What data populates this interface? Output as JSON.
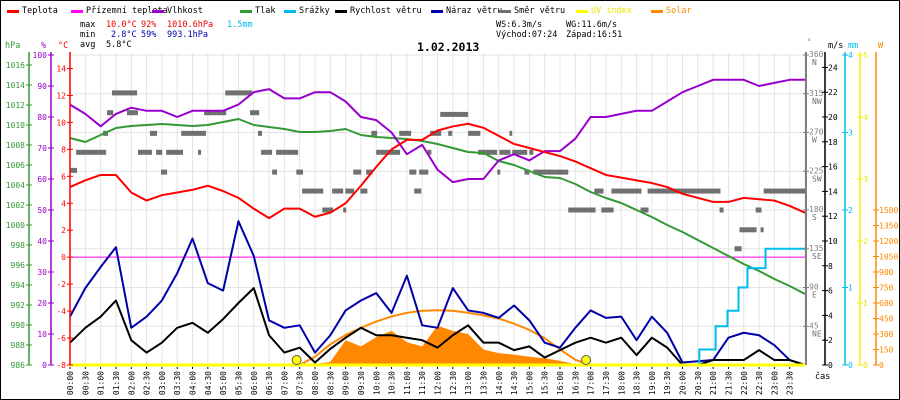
{
  "legend": [
    {
      "label": "Teplota",
      "color": "#ff0000",
      "text_color": "#000000"
    },
    {
      "label": "Přízemní teplota",
      "color": "#ff00ff",
      "text_color": "#000000"
    },
    {
      "label": "Vlhkost",
      "color": "#9900cc",
      "text_color": "#000000"
    },
    {
      "label": "Tlak",
      "color": "#339933",
      "text_color": "#000000"
    },
    {
      "label": "Srážky",
      "color": "#00bbee",
      "text_color": "#000000"
    },
    {
      "label": "Rychlost větru",
      "color": "#000000",
      "text_color": "#000000"
    },
    {
      "label": "Náraz větru",
      "color": "#0000aa",
      "text_color": "#000000"
    },
    {
      "label": "Směr větru",
      "color": "#707070",
      "text_color": "#000000"
    },
    {
      "label": "UV index",
      "color": "#ffff00",
      "text_color": "#e6e600"
    },
    {
      "label": "Solar",
      "color": "#ff8800",
      "text_color": "#ff8800"
    }
  ],
  "stats": {
    "max": {
      "label": "max",
      "temperature": "10.0°C",
      "humidity": "92%",
      "pressure": "1010.6hPa",
      "precipitation": "1.5mm"
    },
    "min": {
      "label": "min",
      "temperature": "2.8°C",
      "humidity": "59%",
      "pressure": "993.1hPa"
    },
    "avg": {
      "label": "avg",
      "temperature": "5.8°C"
    }
  },
  "wind_sun": {
    "wind_speed": "WS:6.3m/s",
    "wind_gust": "WG:11.6m/s",
    "sunrise": "Východ:07:24",
    "sunset": "Západ:16:51"
  },
  "chart_data": {
    "type": "line",
    "title": "1.02.2013",
    "xlabel": "čas",
    "x_range_hours": [
      0,
      24
    ],
    "x_tick_labels": [
      "00:00",
      "00:30",
      "01:00",
      "01:30",
      "02:00",
      "02:30",
      "03:00",
      "03:30",
      "04:00",
      "04:30",
      "05:00",
      "05:30",
      "06:00",
      "06:30",
      "07:00",
      "07:30",
      "08:00",
      "08:30",
      "09:00",
      "09:30",
      "10:00",
      "10:30",
      "11:00",
      "11:30",
      "12:00",
      "12:30",
      "13:00",
      "13:30",
      "14:00",
      "14:30",
      "15:00",
      "15:30",
      "16:00",
      "16:30",
      "17:00",
      "17:30",
      "18:00",
      "18:30",
      "19:00",
      "19:30",
      "20:00",
      "20:30",
      "21:00",
      "21:30",
      "22:00",
      "22:30",
      "23:00",
      "23:30"
    ],
    "grid": true,
    "legend_position": "top",
    "axes": {
      "pressure": {
        "unit": "hPa",
        "side": "left",
        "color": "#339933",
        "range": [
          986,
          1017
        ],
        "ticks": [
          986,
          988,
          990,
          992,
          994,
          996,
          998,
          1000,
          1002,
          1004,
          1006,
          1008,
          1010,
          1012,
          1014,
          1016
        ],
        "tick_labels": [
          "986",
          "988",
          "990",
          "992",
          "994",
          "996",
          "998",
          "1000",
          "1002",
          "1004",
          "1006",
          "1008",
          "1010",
          "1012",
          "1014",
          "1016"
        ]
      },
      "humidity": {
        "unit": "%",
        "side": "left",
        "color": "#9900cc",
        "range": [
          0,
          100
        ],
        "ticks": [
          0,
          10,
          20,
          30,
          40,
          50,
          60,
          70,
          80,
          90,
          100
        ],
        "tick_labels": [
          "0",
          "10",
          "20",
          "30",
          "40",
          "50",
          "60",
          "70",
          "80",
          "90",
          "100"
        ]
      },
      "temperature": {
        "unit": "°C",
        "side": "left",
        "color": "#ff0000",
        "range": [
          -8,
          15
        ],
        "ticks": [
          -8,
          -6,
          -4,
          -2,
          0,
          2,
          4,
          6,
          8,
          10,
          12,
          14
        ],
        "tick_labels": [
          "-8",
          "-6",
          "-4",
          "-2",
          "0",
          "2",
          "4",
          "6",
          "8",
          "10",
          "12",
          "14"
        ]
      },
      "wind_direction": {
        "unit": "°",
        "side": "right",
        "color": "#808080",
        "range": [
          0,
          360
        ],
        "ticks": [
          45,
          90,
          135,
          180,
          225,
          270,
          315,
          360
        ],
        "tick_labels": [
          "45",
          "90",
          "135",
          "180",
          "225",
          "270",
          "315",
          "360"
        ],
        "compass": [
          "NE",
          "E",
          "SE",
          "S",
          "SW",
          "W",
          "NW",
          "N"
        ]
      },
      "wind_speed": {
        "unit": "m/s",
        "side": "right",
        "color": "#000000",
        "range": [
          0,
          25
        ],
        "ticks": [
          0,
          2,
          4,
          6,
          8,
          10,
          12,
          14,
          16,
          18,
          20,
          22,
          24
        ],
        "tick_labels": [
          "0",
          "2",
          "4",
          "6",
          "8",
          "10",
          "12",
          "14",
          "16",
          "18",
          "20",
          "22",
          "24"
        ]
      },
      "precipitation": {
        "unit": "mm",
        "side": "right",
        "color": "#00bbee",
        "range": [
          0,
          4
        ],
        "ticks": [
          0,
          1,
          2,
          3,
          4
        ],
        "tick_labels": [
          "0",
          "1",
          "2",
          "3",
          "4"
        ]
      },
      "uv": {
        "unit": "",
        "side": "right",
        "color": "#ffff00",
        "range": [
          0,
          5
        ],
        "ticks": [
          0,
          1,
          2,
          3,
          4,
          5
        ],
        "tick_labels": [
          "0",
          "1",
          "2",
          "3",
          "4",
          "5"
        ]
      },
      "solar": {
        "unit": "W",
        "side": "right",
        "color": "#ff8800",
        "range": [
          0,
          3000
        ],
        "ticks": [
          0,
          150,
          300,
          450,
          600,
          750,
          900,
          1050,
          1200,
          1350,
          1500
        ],
        "tick_labels": [
          "0",
          "150",
          "300",
          "450",
          "600",
          "750",
          "900",
          "1050",
          "1200",
          "1350",
          "1500"
        ]
      }
    },
    "series": [
      {
        "id": "solar",
        "name": "Solar",
        "axis": "solar",
        "color": "#ff8800",
        "style": "area",
        "start_hour": 8.0,
        "step_hours": 0.5,
        "values": [
          10,
          30,
          240,
          180,
          270,
          330,
          220,
          180,
          380,
          330,
          300,
          150,
          115,
          100,
          80,
          65,
          40,
          10,
          0
        ]
      },
      {
        "id": "solar_theoretical",
        "name": "Solar",
        "axis": "solar",
        "color": "#ff8800",
        "style": "line",
        "start_hour": 7.5,
        "step_hours": 0.5,
        "values": [
          0,
          80,
          200,
          290,
          360,
          420,
          470,
          505,
          525,
          530,
          525,
          505,
          480,
          450,
          400,
          340,
          260,
          150,
          50,
          0
        ]
      },
      {
        "id": "ground_temperature",
        "name": "Přízemní teplota",
        "axis": "temperature",
        "color": "#ff00ff",
        "style": "line",
        "start_hour": 0,
        "step_hours": 24,
        "values": [
          0,
          0
        ]
      },
      {
        "id": "pressure",
        "name": "Tlak",
        "axis": "pressure",
        "color": "#339933",
        "style": "line",
        "start_hour": 0,
        "step_hours": 0.5,
        "values": [
          1008.7,
          1008.3,
          1009.0,
          1009.7,
          1009.9,
          1010.0,
          1010.1,
          1010.0,
          1009.9,
          1010.0,
          1010.3,
          1010.6,
          1010.0,
          1009.8,
          1009.6,
          1009.3,
          1009.3,
          1009.4,
          1009.6,
          1009.0,
          1008.8,
          1008.7,
          1008.6,
          1008.4,
          1008.1,
          1007.7,
          1007.3,
          1007.2,
          1006.4,
          1006.0,
          1005.4,
          1004.8,
          1004.7,
          1004.1,
          1003.3,
          1002.7,
          1002.2,
          1001.5,
          1000.8,
          1000.0,
          999.3,
          998.5,
          997.7,
          996.9,
          996.1,
          995.4,
          994.6,
          993.9,
          993.1
        ]
      },
      {
        "id": "humidity",
        "name": "Vlhkost",
        "axis": "humidity",
        "color": "#9900cc",
        "style": "line",
        "start_hour": 0,
        "step_hours": 0.5,
        "values": [
          84,
          81,
          77,
          81,
          83,
          82,
          82,
          80,
          82,
          82,
          82,
          84,
          88,
          89,
          86,
          86,
          88,
          88,
          85,
          80,
          79,
          75,
          68,
          71,
          63,
          59,
          60,
          60,
          66,
          68,
          66,
          69,
          69,
          73,
          80,
          80,
          81,
          82,
          82,
          85,
          88,
          90,
          92,
          92,
          92,
          90,
          91,
          92,
          92
        ]
      },
      {
        "id": "temperature",
        "name": "Teplota",
        "axis": "temperature",
        "color": "#ff0000",
        "style": "line",
        "start_hour": 0,
        "step_hours": 0.5,
        "values": [
          5.2,
          5.7,
          6.1,
          6.1,
          4.8,
          4.2,
          4.6,
          4.8,
          5.0,
          5.3,
          4.9,
          4.4,
          3.6,
          2.9,
          3.6,
          3.6,
          3.0,
          3.3,
          4.0,
          5.3,
          6.7,
          8.0,
          8.7,
          8.7,
          9.4,
          9.7,
          9.9,
          9.6,
          9.0,
          8.4,
          8.1,
          7.8,
          7.5,
          7.1,
          6.6,
          6.1,
          5.9,
          5.7,
          5.5,
          5.2,
          4.7,
          4.4,
          4.1,
          4.1,
          4.4,
          4.3,
          4.2,
          3.8,
          3.3
        ]
      },
      {
        "id": "wind_gust",
        "name": "Náraz větru",
        "axis": "wind_speed",
        "color": "#0000aa",
        "style": "line",
        "start_hour": 0,
        "step_hours": 0.5,
        "values": [
          3.9,
          6.2,
          7.9,
          9.5,
          3.0,
          3.9,
          5.2,
          7.4,
          10.2,
          6.6,
          6.0,
          11.6,
          8.8,
          3.6,
          3.0,
          3.2,
          1.0,
          2.4,
          4.4,
          5.2,
          5.8,
          4.2,
          7.2,
          3.2,
          3.0,
          6.2,
          4.4,
          4.2,
          3.8,
          4.8,
          3.6,
          1.8,
          1.4,
          3.0,
          4.4,
          3.8,
          3.9,
          2.0,
          3.9,
          2.6,
          0.2,
          0.3,
          0.4,
          2.2,
          2.6,
          2.4,
          1.6,
          0.4,
          0.0
        ]
      },
      {
        "id": "wind_speed",
        "name": "Rychlost větru",
        "axis": "wind_speed",
        "color": "#000000",
        "style": "line",
        "start_hour": 0,
        "step_hours": 0.5,
        "values": [
          1.8,
          3.0,
          3.9,
          5.2,
          2.0,
          1.0,
          1.8,
          3.0,
          3.4,
          2.6,
          3.7,
          5.0,
          6.2,
          2.4,
          1.0,
          1.4,
          0.2,
          1.3,
          2.2,
          3.0,
          2.4,
          2.4,
          2.2,
          2.0,
          1.4,
          2.4,
          3.2,
          1.8,
          1.8,
          1.2,
          1.5,
          0.6,
          1.2,
          1.8,
          2.2,
          1.8,
          2.2,
          0.8,
          2.2,
          1.4,
          0.0,
          0.0,
          0.4,
          0.4,
          0.4,
          1.2,
          0.4,
          0.4,
          0.0
        ]
      },
      {
        "id": "precipitation",
        "name": "Srážky",
        "axis": "precipitation",
        "color": "#00bbee",
        "style": "step",
        "points": [
          [
            20.5,
            0
          ],
          [
            20.55,
            0.2
          ],
          [
            21.08,
            0.5
          ],
          [
            21.47,
            0.7
          ],
          [
            21.83,
            1.0
          ],
          [
            22.12,
            1.25
          ],
          [
            22.71,
            1.5
          ],
          [
            24,
            1.5
          ]
        ]
      },
      {
        "id": "uv_index",
        "name": "UV index",
        "axis": "uv",
        "color": "#ffff00",
        "style": "line",
        "start_hour": 0,
        "step_hours": 24,
        "values": [
          0,
          0
        ]
      }
    ],
    "wind_direction_segments": [
      [
        0.0,
        0.23,
        226
      ],
      [
        0.2,
        1.18,
        247
      ],
      [
        1.08,
        1.24,
        269
      ],
      [
        1.21,
        1.41,
        293
      ],
      [
        1.37,
        2.19,
        316
      ],
      [
        1.86,
        2.22,
        293
      ],
      [
        2.22,
        2.68,
        247
      ],
      [
        2.61,
        2.84,
        269
      ],
      [
        2.81,
        3.01,
        247
      ],
      [
        2.97,
        3.17,
        224
      ],
      [
        3.14,
        3.69,
        247
      ],
      [
        3.63,
        4.44,
        269
      ],
      [
        4.18,
        4.28,
        247
      ],
      [
        4.38,
        5.1,
        293
      ],
      [
        5.07,
        5.95,
        316
      ],
      [
        5.88,
        6.18,
        293
      ],
      [
        6.14,
        6.27,
        269
      ],
      [
        6.24,
        6.6,
        247
      ],
      [
        6.6,
        6.76,
        224
      ],
      [
        6.73,
        7.45,
        247
      ],
      [
        7.39,
        7.61,
        224
      ],
      [
        7.58,
        8.27,
        202
      ],
      [
        8.24,
        8.59,
        180
      ],
      [
        8.56,
        8.92,
        202
      ],
      [
        8.92,
        9.02,
        180
      ],
      [
        8.99,
        9.28,
        202
      ],
      [
        9.25,
        9.51,
        224
      ],
      [
        9.48,
        9.71,
        202
      ],
      [
        9.67,
        9.87,
        224
      ],
      [
        9.84,
        10.03,
        269
      ],
      [
        10.0,
        10.78,
        247
      ],
      [
        10.75,
        11.14,
        269
      ],
      [
        11.08,
        11.31,
        224
      ],
      [
        11.24,
        11.47,
        202
      ],
      [
        11.4,
        11.7,
        224
      ],
      [
        11.67,
        11.8,
        247
      ],
      [
        11.76,
        12.12,
        269
      ],
      [
        12.09,
        13.0,
        291
      ],
      [
        12.35,
        12.48,
        269
      ],
      [
        13.0,
        13.4,
        269
      ],
      [
        13.33,
        13.95,
        247
      ],
      [
        13.95,
        14.05,
        224
      ],
      [
        14.02,
        14.38,
        247
      ],
      [
        14.35,
        14.44,
        269
      ],
      [
        14.44,
        14.93,
        247
      ],
      [
        14.84,
        15.0,
        224
      ],
      [
        15.0,
        15.13,
        247
      ],
      [
        15.13,
        16.27,
        224
      ],
      [
        16.27,
        17.16,
        180
      ],
      [
        17.12,
        17.42,
        202
      ],
      [
        17.35,
        17.75,
        180
      ],
      [
        17.68,
        18.66,
        202
      ],
      [
        18.63,
        18.89,
        180
      ],
      [
        18.86,
        21.24,
        202
      ],
      [
        21.21,
        21.34,
        180
      ],
      [
        21.7,
        21.93,
        135
      ],
      [
        21.86,
        22.42,
        157
      ],
      [
        22.39,
        22.58,
        180
      ],
      [
        22.55,
        22.65,
        157
      ],
      [
        22.65,
        24.0,
        202
      ]
    ],
    "sun_markers": [
      {
        "event": "sunrise",
        "time": "07:24",
        "hour": 7.4
      },
      {
        "event": "sunset",
        "time": "16:51",
        "hour": 16.85
      }
    ]
  }
}
